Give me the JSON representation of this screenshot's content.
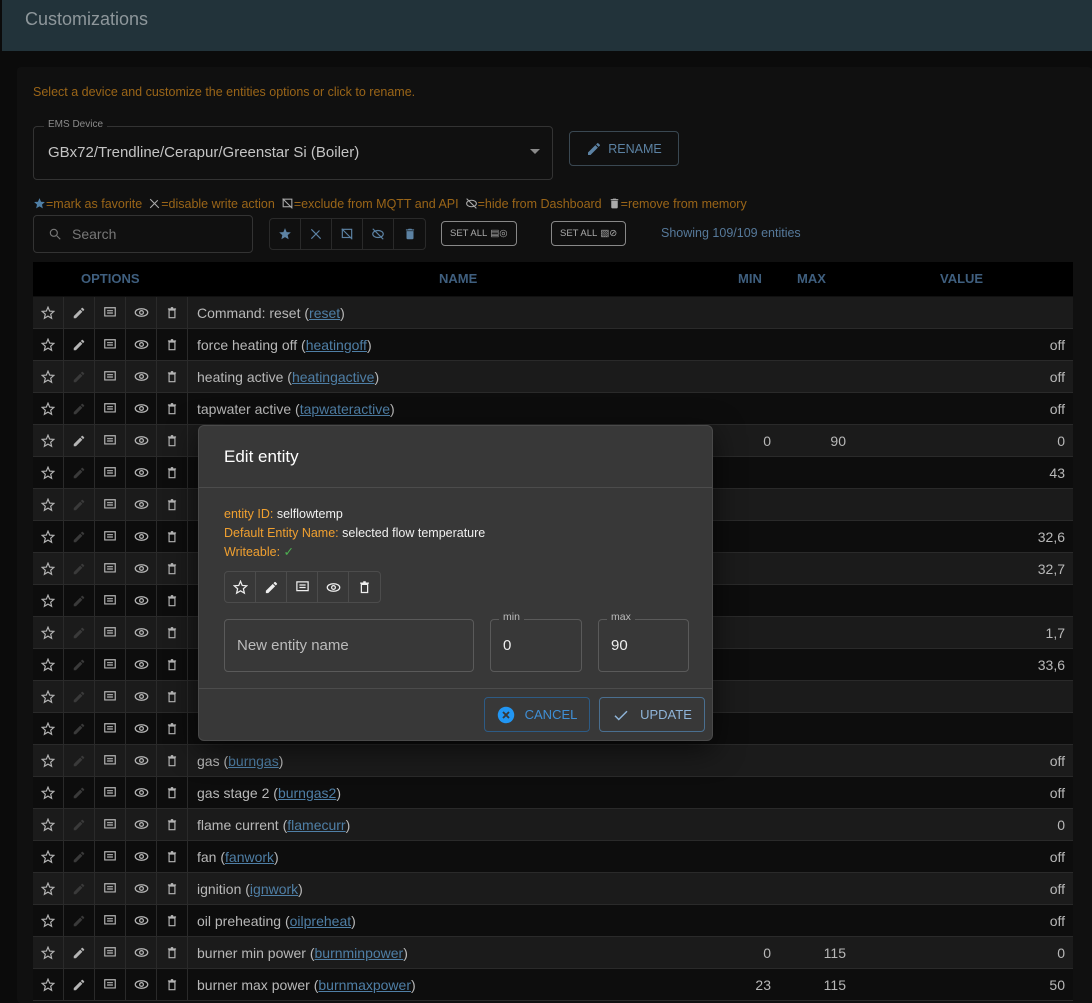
{
  "header": {
    "title": "Customizations"
  },
  "hint": "Select a device and customize the entities options or click to rename.",
  "device": {
    "label": "EMS Device",
    "value": "GBx72/Trendline/Cerapur/Greenstar Si (Boiler)"
  },
  "rename_label": "RENAME",
  "legend": [
    "=mark as favorite",
    "=disable write action",
    "=exclude from MQTT and API",
    "=hide from Dashboard",
    "=remove from memory"
  ],
  "search": {
    "placeholder": "Search"
  },
  "set_all_1": "SET ALL",
  "set_all_2": "SET ALL",
  "count": "Showing 109/109 entities",
  "columns": {
    "options": "OPTIONS",
    "name": "NAME",
    "min": "MIN",
    "max": "MAX",
    "value": "VALUE"
  },
  "rows": [
    {
      "name": "Command: reset (",
      "id": "reset",
      "min": "",
      "max": "",
      "value": "",
      "w": true
    },
    {
      "name": "force heating off (",
      "id": "heatingoff",
      "min": "",
      "max": "",
      "value": "off",
      "w": true
    },
    {
      "name": "heating active (",
      "id": "heatingactive",
      "min": "",
      "max": "",
      "value": "off",
      "w": false
    },
    {
      "name": "tapwater active (",
      "id": "tapwateractive",
      "min": "",
      "max": "",
      "value": "off",
      "w": false
    },
    {
      "name": "",
      "id": "",
      "min": "0",
      "max": "90",
      "value": "0",
      "w": true
    },
    {
      "name": "",
      "id": "",
      "min": "",
      "max": "",
      "value": "43",
      "w": false
    },
    {
      "name": "",
      "id": "",
      "min": "",
      "max": "",
      "value": "",
      "w": false
    },
    {
      "name": "",
      "id": "",
      "min": "",
      "max": "",
      "value": "32,6",
      "w": false
    },
    {
      "name": "",
      "id": "",
      "min": "",
      "max": "",
      "value": "32,7",
      "w": false
    },
    {
      "name": "",
      "id": "",
      "min": "",
      "max": "",
      "value": "",
      "w": false
    },
    {
      "name": "",
      "id": "",
      "min": "",
      "max": "",
      "value": "1,7",
      "w": false
    },
    {
      "name": "",
      "id": "",
      "min": "",
      "max": "",
      "value": "33,6",
      "w": false
    },
    {
      "name": "",
      "id": "",
      "min": "",
      "max": "",
      "value": "",
      "w": false
    },
    {
      "name": "",
      "id": "",
      "min": "",
      "max": "",
      "value": "",
      "w": false
    },
    {
      "name": "gas (",
      "id": "burngas",
      "min": "",
      "max": "",
      "value": "off",
      "w": false
    },
    {
      "name": "gas stage 2 (",
      "id": "burngas2",
      "min": "",
      "max": "",
      "value": "off",
      "w": false
    },
    {
      "name": "flame current (",
      "id": "flamecurr",
      "min": "",
      "max": "",
      "value": "0",
      "w": false
    },
    {
      "name": "fan (",
      "id": "fanwork",
      "min": "",
      "max": "",
      "value": "off",
      "w": false
    },
    {
      "name": "ignition (",
      "id": "ignwork",
      "min": "",
      "max": "",
      "value": "off",
      "w": false
    },
    {
      "name": "oil preheating (",
      "id": "oilpreheat",
      "min": "",
      "max": "",
      "value": "off",
      "w": false
    },
    {
      "name": "burner min power (",
      "id": "burnminpower",
      "min": "0",
      "max": "115",
      "value": "0",
      "w": true
    },
    {
      "name": "burner max power (",
      "id": "burnmaxpower",
      "min": "23",
      "max": "115",
      "value": "50",
      "w": true
    }
  ],
  "modal": {
    "title": "Edit entity",
    "entity_id_label": "entity ID:",
    "entity_id": "selflowtemp",
    "default_name_label": "Default Entity Name:",
    "default_name": "selected flow temperature",
    "writeable_label": "Writeable:",
    "writeable": "✓",
    "name_placeholder": "New entity name",
    "min_label": "min",
    "min": "0",
    "max_label": "max",
    "max": "90",
    "cancel": "CANCEL",
    "update": "UPDATE"
  },
  "colors": {
    "accent": "#3f8fd6",
    "warning": "#f0a030",
    "success": "#4caf50"
  }
}
